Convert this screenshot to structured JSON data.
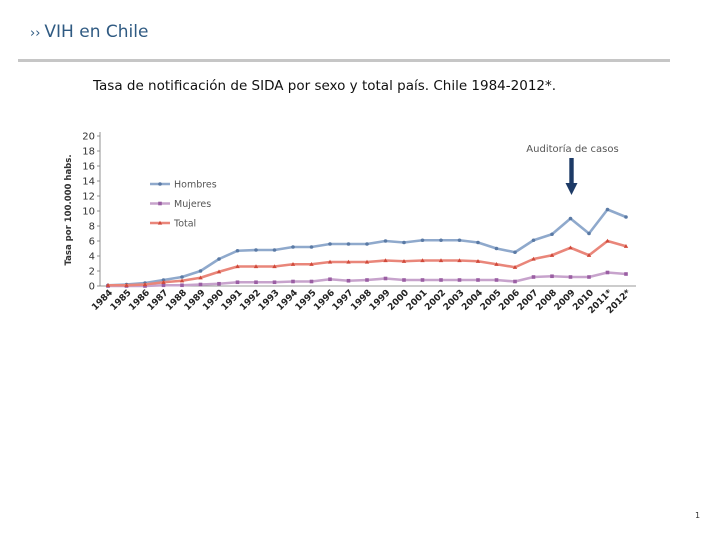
{
  "header": {
    "chevron": "››",
    "title": "VIH en Chile"
  },
  "subtitle": "Tasa de notificación de SIDA por sexo y total país. Chile 1984-2012*.",
  "page_number": "1",
  "colors": {
    "hombres": "#8fa9cc",
    "mujeres": "#c7a3cc",
    "total": "#e9867a",
    "arrow": "#1d3a66",
    "title": "#2f5a82"
  },
  "chart_data": {
    "type": "line",
    "ylabel": "Tasa por 100.000 habs.",
    "ylim": [
      0,
      20
    ],
    "yticks": [
      "0",
      "2",
      "4",
      "6",
      "8",
      "10",
      "12",
      "14",
      "16",
      "18",
      "20"
    ],
    "categories": [
      "1984",
      "1985",
      "1986",
      "1987",
      "1988",
      "1989",
      "1990",
      "1991",
      "1992",
      "1993",
      "1994",
      "1995",
      "1996",
      "1997",
      "1998",
      "1999",
      "2000",
      "2001",
      "2002",
      "2003",
      "2004",
      "2005",
      "2006",
      "2007",
      "2008",
      "2009",
      "2010",
      "2011*",
      "2012*"
    ],
    "series": [
      {
        "name": "Hombres",
        "color_key": "hombres",
        "marker": "circle",
        "values": [
          0.1,
          0.2,
          0.4,
          0.8,
          1.2,
          2.0,
          3.6,
          4.7,
          4.8,
          4.8,
          5.2,
          5.2,
          5.6,
          5.6,
          5.6,
          6.0,
          5.8,
          6.1,
          6.1,
          6.1,
          5.8,
          5.0,
          4.5,
          6.1,
          6.9,
          9.0,
          7.0,
          10.2,
          9.2
        ]
      },
      {
        "name": "Mujeres",
        "color_key": "mujeres",
        "marker": "square",
        "values": [
          0.0,
          0.0,
          0.0,
          0.1,
          0.1,
          0.2,
          0.3,
          0.5,
          0.5,
          0.5,
          0.6,
          0.6,
          0.9,
          0.7,
          0.8,
          1.0,
          0.8,
          0.8,
          0.8,
          0.8,
          0.8,
          0.8,
          0.6,
          1.2,
          1.3,
          1.2,
          1.2,
          1.8,
          1.6
        ]
      },
      {
        "name": "Total",
        "color_key": "total",
        "marker": "triangle",
        "values": [
          0.1,
          0.1,
          0.2,
          0.5,
          0.7,
          1.1,
          1.9,
          2.6,
          2.6,
          2.6,
          2.9,
          2.9,
          3.2,
          3.2,
          3.2,
          3.4,
          3.3,
          3.4,
          3.4,
          3.4,
          3.3,
          2.9,
          2.5,
          3.6,
          4.1,
          5.1,
          4.1,
          6.0,
          5.3
        ]
      }
    ],
    "annotation": {
      "text": "Auditoría de casos",
      "category": "2009"
    },
    "legend_position": "upper-left",
    "grid": false
  }
}
